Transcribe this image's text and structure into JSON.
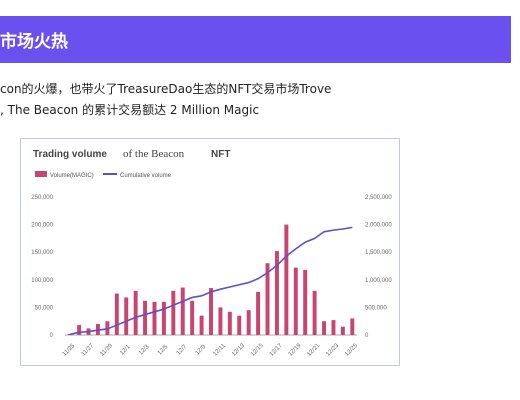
{
  "header": {
    "title": "市场火热",
    "bg_color": "#6b50f0"
  },
  "body_text": {
    "line1": "con的火爆，也带火了TreasureDao生态的NFT交易市场Trove",
    "line2": ", The Beacon 的累计交易额达 2 Million Magic"
  },
  "chart_data": {
    "type": "bar+line",
    "title_part1": "Trading volume",
    "title_part2": "of the Beacon",
    "title_part3": "NFT",
    "legend": {
      "bar_label": "Volume(MAGIC)",
      "line_label": "Cumulative volume",
      "placement": "top-left"
    },
    "colors": {
      "bar": "#c9446f",
      "line": "#5a4fd6"
    },
    "x_tick_labels": [
      "11/25",
      "11/27",
      "11/29",
      "12/1",
      "12/3",
      "12/5",
      "12/7",
      "12/9",
      "12/11",
      "12/13",
      "12/15",
      "12/17",
      "12/19",
      "12/21",
      "12/23",
      "12/25"
    ],
    "left_ticks": [
      "0",
      "50,000",
      "100,000",
      "150,000",
      "200,000",
      "250,000"
    ],
    "right_ticks": [
      "0",
      "500,000",
      "1,000,000",
      "1,500,000",
      "2,000,000",
      "2,500,000"
    ],
    "ylim_left": [
      0,
      250000
    ],
    "ylim_right": [
      0,
      2500000
    ],
    "grid": false,
    "bar_series": {
      "name": "Volume(MAGIC)",
      "values": [
        2000,
        18000,
        12000,
        20000,
        25000,
        75000,
        68000,
        80000,
        62000,
        60000,
        60000,
        80000,
        86000,
        62000,
        35000,
        85000,
        50000,
        42000,
        35000,
        45000,
        78000,
        130000,
        152000,
        200000,
        122000,
        118000,
        80000,
        25000,
        27000,
        15000,
        30000
      ]
    },
    "line_series": {
      "name": "Cumulative volume",
      "values": [
        10000,
        50000,
        60000,
        90000,
        110000,
        180000,
        250000,
        320000,
        370000,
        420000,
        470000,
        540000,
        610000,
        680000,
        710000,
        780000,
        830000,
        870000,
        910000,
        950000,
        1020000,
        1130000,
        1260000,
        1430000,
        1560000,
        1680000,
        1750000,
        1870000,
        1900000,
        1920000,
        1950000
      ]
    }
  }
}
